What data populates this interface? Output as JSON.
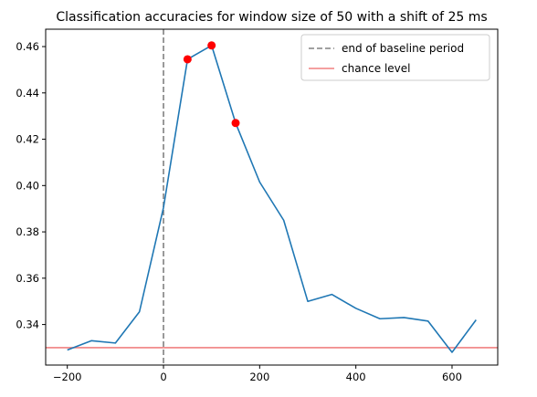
{
  "chart_data": {
    "type": "line",
    "title": "Classification accuracies for window size of 50 with a shift of 25 ms",
    "xlabel": "",
    "ylabel": "",
    "xlim": [
      -245,
      695
    ],
    "ylim": [
      0.3225,
      0.4675
    ],
    "xticks": [
      -200,
      0,
      200,
      400,
      600
    ],
    "xtick_labels": [
      "−200",
      "0",
      "200",
      "400",
      "600"
    ],
    "yticks": [
      0.34,
      0.36,
      0.38,
      0.4,
      0.42,
      0.44,
      0.46
    ],
    "ytick_labels": [
      "0.34",
      "0.36",
      "0.38",
      "0.40",
      "0.42",
      "0.44",
      "0.46"
    ],
    "grid": false,
    "legend_placement": "top-right",
    "series": [
      {
        "color": "#1f77b4",
        "x": [
          -200,
          -150,
          -100,
          -50,
          0,
          50,
          100,
          150,
          200,
          250,
          300,
          350,
          400,
          450,
          500,
          550,
          600,
          650
        ],
        "y": [
          0.329,
          0.333,
          0.332,
          0.3455,
          0.3905,
          0.4545,
          0.4605,
          0.427,
          0.4015,
          0.385,
          0.35,
          0.353,
          0.347,
          0.3425,
          0.343,
          0.3415,
          0.328,
          0.342
        ]
      }
    ],
    "highlight_points": {
      "color": "#ff0000",
      "x": [
        50,
        100,
        150
      ],
      "y": [
        0.4545,
        0.4605,
        0.427
      ]
    },
    "reference_lines": [
      {
        "orientation": "vertical",
        "value": 0,
        "style": "dashed",
        "color": "#808080",
        "legend": "end of baseline period"
      },
      {
        "orientation": "horizontal",
        "value": 0.33,
        "style": "solid",
        "color": "#f08080",
        "legend": "chance level"
      }
    ]
  }
}
